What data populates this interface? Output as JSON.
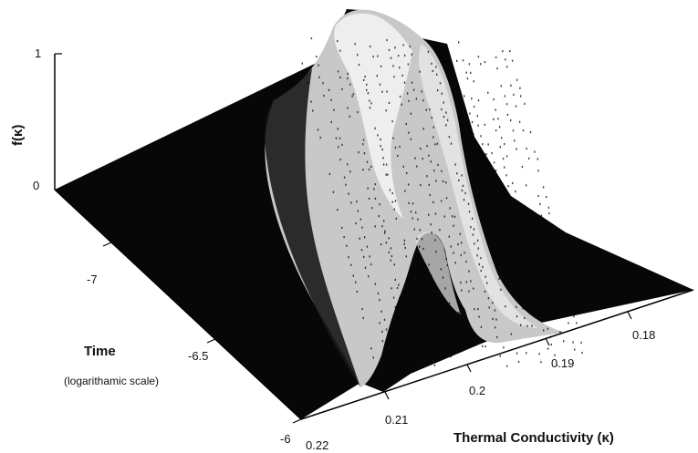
{
  "chart_data": {
    "type": "surface",
    "zlabel": "f(κ)",
    "xlabel": "Thermal Conductivity (κ)",
    "ylabel": "Time",
    "ylabel_note": "(logarithamic scale)",
    "x_ticks": [
      "0.18",
      "0.19",
      "0.2",
      "0.21",
      "0.22"
    ],
    "y_ticks": [
      "-7",
      "-6.5",
      "-6"
    ],
    "z_ticks": [
      "0",
      "1"
    ],
    "xlim": [
      0.175,
      0.22
    ],
    "ylim": [
      -7.45,
      -6
    ],
    "zlim": [
      0,
      1
    ],
    "colormap": "gray",
    "peak_location": {
      "x": 0.196,
      "y": -7.45,
      "z": 1.0
    },
    "ridge": [
      {
        "time": -7.45,
        "kappa_center": 0.196,
        "peak_f": 1.0
      },
      {
        "time": -7.0,
        "kappa_center": 0.1955,
        "peak_f": 0.6
      },
      {
        "time": -6.5,
        "kappa_center": 0.1985,
        "peak_f": 0.45
      },
      {
        "time": -6.0,
        "kappa_center": 0.205,
        "peak_f": 0.0
      }
    ]
  }
}
